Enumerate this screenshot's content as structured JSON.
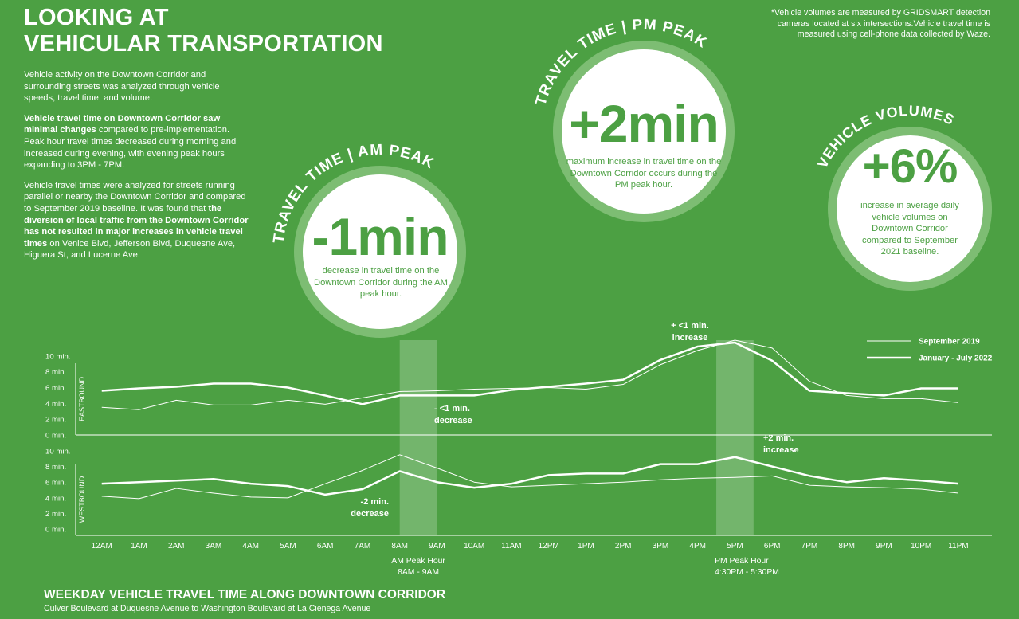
{
  "header": {
    "title": [
      "LOOKING AT",
      "VEHICULAR TRANSPORTATION"
    ]
  },
  "intro": [
    [
      {
        "text": "Vehicle activity on the Downtown Corridor and surrounding streets was analyzed through vehicle speeds, travel time, and volume."
      }
    ],
    [
      {
        "text": "Vehicle travel time on Downtown Corridor saw minimal changes",
        "bold": true
      },
      {
        "text": " compared to pre-implementation. Peak hour travel times decreased during morning and increased during evening, with evening peak hours expanding to 3PM - 7PM."
      }
    ],
    [
      {
        "text": "Vehicle travel times were analyzed for streets running parallel or nearby the Downtown Corridor and compared to September 2019 baseline. It was found that "
      },
      {
        "text": "the diversion of local traffic from the Downtown Corridor has not resulted in major increases in vehicle travel times",
        "bold": true
      },
      {
        "text": " on Venice Blvd, Jefferson Blvd, Duquesne Ave, Higuera St, and Lucerne Ave."
      }
    ]
  ],
  "note": "*Vehicle volumes are measured by GRIDSMART detection cameras located at six intersections.Vehicle travel time is measured using cell-phone data collected by Waze.",
  "stats": [
    {
      "heading": "TRAVEL TIME | AM PEAK",
      "value": "-1min",
      "text": "decrease in travel time on the Downtown Corridor during the AM peak hour."
    },
    {
      "heading": "TRAVEL TIME | PM PEAK",
      "value": "+2min",
      "text": "maximum increase in travel time on the Downtown Corridor occurs during the PM peak hour."
    },
    {
      "heading": "VEHICLE VOLUMES",
      "value": "+6%",
      "text": "increase in average daily vehicle volumes on Downtown Corridor compared to September 2021 baseline."
    }
  ],
  "chart_footer": {
    "title": "WEEKDAY VEHICLE TRAVEL TIME ALONG DOWNTOWN CORRIDOR",
    "subtitle": "Culver Boulevard at Duquesne Avenue to Washington Boulevard at La Cienega Avenue"
  },
  "chart_data": [
    {
      "type": "line",
      "ylabel": "EASTBOUND",
      "x": [
        0,
        1,
        2,
        3,
        4,
        5,
        6,
        7,
        8,
        9,
        10,
        11,
        12,
        13,
        14,
        15,
        16,
        17,
        18,
        19,
        20,
        21,
        22,
        23
      ],
      "xlim": [
        -0.7,
        23.9
      ],
      "ylim": [
        0,
        12
      ],
      "yticks": [
        {
          "value": 0,
          "label": "0 min."
        },
        {
          "value": 2,
          "label": "2 min."
        },
        {
          "value": 4,
          "label": "4 min."
        },
        {
          "value": 6,
          "label": "6 min."
        },
        {
          "value": 8,
          "label": "8 min."
        },
        {
          "value": 10,
          "label": "10 min."
        }
      ],
      "legend": "upper right",
      "series": [
        {
          "name": "September 2019",
          "color": "#ffffff",
          "line_width": 1,
          "values": [
            3.5,
            3.2,
            4.4,
            3.8,
            3.8,
            4.4,
            3.9,
            4.7,
            5.5,
            5.6,
            5.8,
            5.9,
            6.0,
            5.8,
            6.4,
            8.9,
            10.7,
            12.0,
            11.0,
            6.8,
            5.0,
            4.6,
            4.6,
            4.1
          ]
        },
        {
          "name": "January - July 2022",
          "color": "#ffffff",
          "line_width": 2.5,
          "values": [
            5.6,
            5.9,
            6.1,
            6.5,
            6.5,
            6.0,
            5.0,
            3.9,
            5.0,
            5.0,
            5.0,
            5.7,
            6.1,
            6.5,
            7.0,
            9.5,
            11.2,
            11.7,
            9.4,
            5.6,
            5.3,
            5.0,
            5.9,
            5.9
          ]
        }
      ],
      "annotations": [
        {
          "lines": [
            "+ <1 min.",
            "increase"
          ]
        },
        {
          "lines": [
            "- <1 min.",
            "decrease"
          ]
        }
      ]
    },
    {
      "type": "line",
      "ylabel": "WESTBOUND",
      "x": [
        0,
        1,
        2,
        3,
        4,
        5,
        6,
        7,
        8,
        9,
        10,
        11,
        12,
        13,
        14,
        15,
        16,
        17,
        18,
        19,
        20,
        21,
        22,
        23
      ],
      "xlim": [
        -0.7,
        23.9
      ],
      "ylim": [
        -0.8,
        10.5
      ],
      "yticks": [
        {
          "value": 0,
          "label": "0 min."
        },
        {
          "value": 2,
          "label": "2 min."
        },
        {
          "value": 4,
          "label": "4 min."
        },
        {
          "value": 6,
          "label": "6 min."
        },
        {
          "value": 8,
          "label": "8 min."
        },
        {
          "value": 10,
          "label": "10 min."
        }
      ],
      "xticks": [
        {
          "value": 0,
          "label": "12AM"
        },
        {
          "value": 1,
          "label": "1AM"
        },
        {
          "value": 2,
          "label": "2AM"
        },
        {
          "value": 3,
          "label": "3AM"
        },
        {
          "value": 4,
          "label": "4AM"
        },
        {
          "value": 5,
          "label": "5AM"
        },
        {
          "value": 6,
          "label": "6AM"
        },
        {
          "value": 7,
          "label": "7AM"
        },
        {
          "value": 8,
          "label": "8AM"
        },
        {
          "value": 9,
          "label": "9AM"
        },
        {
          "value": 10,
          "label": "10AM"
        },
        {
          "value": 11,
          "label": "11AM"
        },
        {
          "value": 12,
          "label": "12PM"
        },
        {
          "value": 13,
          "label": "1PM"
        },
        {
          "value": 14,
          "label": "2PM"
        },
        {
          "value": 15,
          "label": "3PM"
        },
        {
          "value": 16,
          "label": "4PM"
        },
        {
          "value": 17,
          "label": "5PM"
        },
        {
          "value": 18,
          "label": "6PM"
        },
        {
          "value": 19,
          "label": "7PM"
        },
        {
          "value": 20,
          "label": "8PM"
        },
        {
          "value": 21,
          "label": "9PM"
        },
        {
          "value": 22,
          "label": "10PM"
        },
        {
          "value": 23,
          "label": "11PM"
        }
      ],
      "series": [
        {
          "color": "#ffffff",
          "line_width": 1,
          "values": [
            4.2,
            3.9,
            5.2,
            4.6,
            4.1,
            4.0,
            5.8,
            7.5,
            9.5,
            7.8,
            6.0,
            5.4,
            5.6,
            5.8,
            6.0,
            6.3,
            6.5,
            6.6,
            6.8,
            5.6,
            5.4,
            5.3,
            5.1,
            4.6
          ]
        },
        {
          "color": "#ffffff",
          "line_width": 2.5,
          "values": [
            5.8,
            6.0,
            6.2,
            6.4,
            5.8,
            5.5,
            4.4,
            5.1,
            7.4,
            6.0,
            5.3,
            5.8,
            6.9,
            7.1,
            7.1,
            8.3,
            8.3,
            9.2,
            8.0,
            6.8,
            6.0,
            6.5,
            6.2,
            5.8
          ]
        }
      ],
      "highlights": [
        {
          "range": [
            8,
            9
          ],
          "label": [
            "AM Peak Hour",
            "8AM - 9AM"
          ]
        },
        {
          "range": [
            16.5,
            17.5
          ],
          "label": [
            "PM Peak Hour",
            "4:30PM - 5:30PM"
          ]
        }
      ],
      "annotations": [
        {
          "lines": [
            "+2 min.",
            "increase"
          ]
        },
        {
          "lines": [
            "-2 min.",
            "decrease"
          ]
        }
      ]
    }
  ]
}
